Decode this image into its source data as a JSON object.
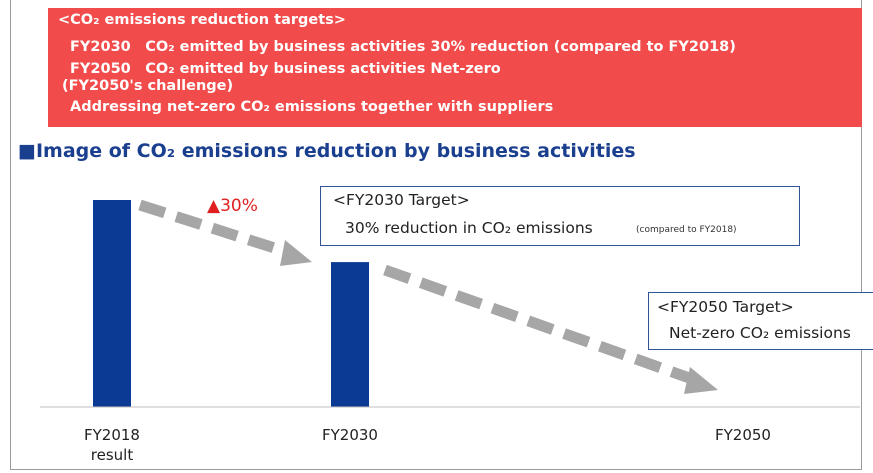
{
  "header": {
    "lines": [
      "<CO₂ emissions reduction targets>",
      "FY2030　CO₂ emitted by business activities 30% reduction (compared to FY2018)",
      "FY2050　CO₂ emitted by business activities Net-zero",
      "(FY2050's challenge)",
      "Addressing net-zero CO₂ emissions together with suppliers"
    ]
  },
  "chart_data": {
    "type": "bar",
    "title": "■Image of CO₂ emissions reduction by business activities",
    "categories": [
      "FY2018 result",
      "FY2030",
      "FY2050"
    ],
    "values": [
      100,
      70,
      0
    ],
    "color": "#0b3a94",
    "ylim": [
      0,
      100
    ],
    "annotation": "▲30%",
    "targets": [
      {
        "heading": "<FY2030 Target>",
        "text": "30% reduction in CO₂ emissions",
        "note": "(compared to FY2018)"
      },
      {
        "heading": "<FY2050 Target>",
        "text": "Net-zero CO₂ emissions"
      }
    ]
  }
}
